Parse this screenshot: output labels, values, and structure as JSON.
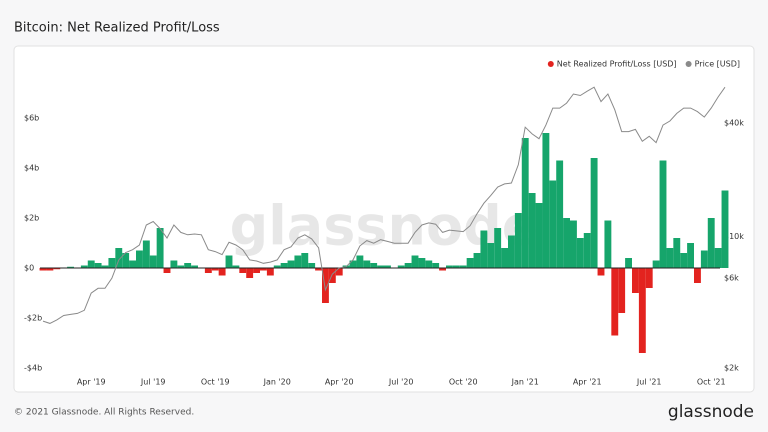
{
  "title": "Bitcoin: Net Realized Profit/Loss",
  "watermark": "glassnode",
  "footer": "© 2021 Glassnode. All Rights Reserved.",
  "logo": "glassnode",
  "chart_data": {
    "type": "bar",
    "categories": [
      null,
      null,
      null,
      null,
      null,
      null,
      null,
      "Apr '19",
      null,
      null,
      null,
      null,
      null,
      null,
      null,
      null,
      "Jul '19",
      null,
      null,
      null,
      null,
      null,
      null,
      null,
      null,
      "Oct '19",
      null,
      null,
      null,
      null,
      null,
      null,
      null,
      null,
      "Jan '20",
      null,
      null,
      null,
      null,
      null,
      null,
      null,
      null,
      "Apr '20",
      null,
      null,
      null,
      null,
      null,
      null,
      null,
      null,
      "Jul '20",
      null,
      null,
      null,
      null,
      null,
      null,
      null,
      null,
      "Oct '20",
      null,
      null,
      null,
      null,
      null,
      null,
      null,
      null,
      "Jan '21",
      null,
      null,
      null,
      null,
      null,
      null,
      null,
      null,
      "Apr '21",
      null,
      null,
      null,
      null,
      null,
      null,
      null,
      null,
      "Jul '21",
      null,
      null,
      null,
      null,
      null,
      null,
      null,
      null,
      "Oct '21",
      null,
      null
    ],
    "series": [
      {
        "name": "Net Realized Profit/Loss [USD]",
        "color": "#e3231f",
        "positive_color": "#16a56b",
        "values": [
          -0.1,
          -0.1,
          -0.05,
          0.0,
          0.05,
          0.0,
          0.1,
          0.3,
          0.2,
          0.1,
          0.4,
          0.8,
          0.6,
          0.3,
          0.7,
          1.1,
          0.5,
          1.6,
          -0.2,
          0.3,
          0.1,
          0.2,
          0.1,
          0.0,
          -0.2,
          -0.1,
          -0.3,
          0.5,
          0.1,
          -0.2,
          -0.4,
          -0.2,
          -0.1,
          -0.3,
          0.1,
          0.2,
          0.3,
          0.5,
          0.6,
          0.2,
          -0.1,
          -1.4,
          -0.6,
          -0.3,
          0.1,
          0.3,
          0.5,
          0.3,
          0.2,
          0.1,
          0.1,
          0.0,
          0.1,
          0.2,
          0.5,
          0.4,
          0.3,
          0.2,
          -0.1,
          0.1,
          0.1,
          0.1,
          0.4,
          0.6,
          1.5,
          1.0,
          1.6,
          0.8,
          1.3,
          2.2,
          5.2,
          3.0,
          2.6,
          5.4,
          3.5,
          4.3,
          2.0,
          1.9,
          1.2,
          1.4,
          4.4,
          -0.3,
          1.9,
          -2.7,
          -1.8,
          0.4,
          -1.0,
          -3.4,
          -0.8,
          0.3,
          4.3,
          0.8,
          1.2,
          0.6,
          1.0,
          -0.6,
          0.7,
          2.0,
          0.8,
          3.1
        ]
      },
      {
        "name": "Price [USD]",
        "color": "#8a8a8a",
        "axis": "y2",
        "values": [
          3550,
          3450,
          3600,
          3800,
          3850,
          3900,
          4050,
          5000,
          5300,
          5300,
          6000,
          7500,
          8200,
          8500,
          9000,
          11500,
          12000,
          11000,
          9800,
          11500,
          10500,
          10200,
          10300,
          10200,
          8500,
          8300,
          8000,
          9300,
          9000,
          8500,
          7500,
          7400,
          7200,
          7300,
          7500,
          8500,
          8800,
          9800,
          10200,
          9700,
          8700,
          5200,
          6300,
          6800,
          6900,
          7500,
          8900,
          9500,
          9200,
          9600,
          9400,
          9200,
          9200,
          9200,
          10500,
          11500,
          11800,
          11600,
          10500,
          10800,
          10700,
          10600,
          11400,
          13200,
          15000,
          16500,
          18300,
          19000,
          19200,
          24000,
          38000,
          35000,
          33000,
          39000,
          48000,
          48000,
          51000,
          57000,
          56000,
          59000,
          62000,
          52000,
          57000,
          47000,
          36000,
          36000,
          37000,
          32000,
          34000,
          31500,
          39000,
          41000,
          45000,
          48000,
          48000,
          46000,
          43000,
          48000,
          55000,
          62000
        ]
      }
    ],
    "ylim": [
      -4.4,
      7.72
    ],
    "yticks": [
      {
        "value": -4,
        "label": "-$4b"
      },
      {
        "value": -2,
        "label": "-$2b"
      },
      {
        "value": 0,
        "label": "$0"
      },
      {
        "value": 2,
        "label": "$2b"
      },
      {
        "value": 4,
        "label": "$4b"
      },
      {
        "value": 6,
        "label": "$6b"
      }
    ],
    "y2lim": [
      1770,
      71950
    ],
    "y2_log": true,
    "y2ticks": [
      {
        "value": 2000,
        "label": "$2k"
      },
      {
        "value": 6000,
        "label": "$6k"
      },
      {
        "value": 10000,
        "label": "$10k"
      },
      {
        "value": 40000,
        "label": "$40k"
      }
    ],
    "grid": false,
    "zero_line": true,
    "legend": "top-right"
  }
}
